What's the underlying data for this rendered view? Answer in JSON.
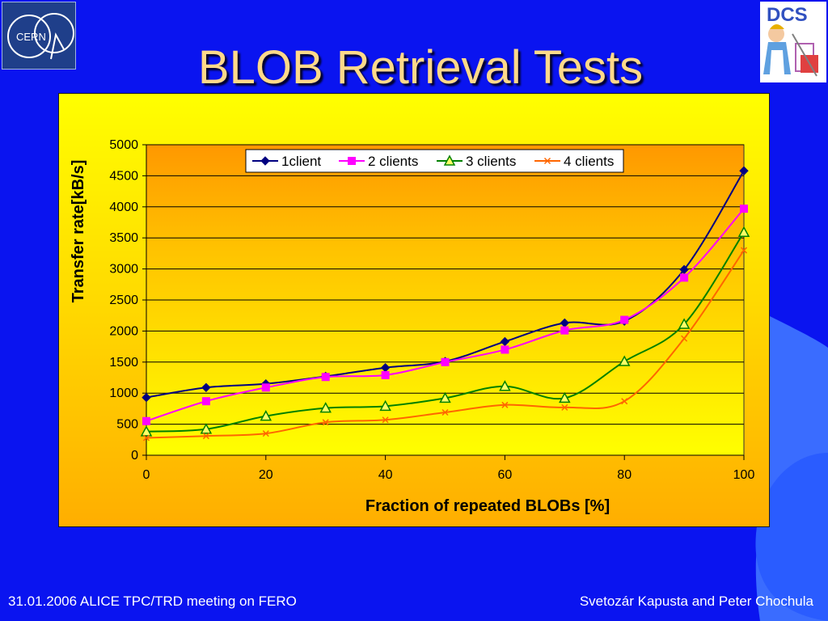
{
  "slide": {
    "title": "BLOB Retrieval Tests",
    "footer_left": "31.01.2006 ALICE TPC/TRD meeting on FERO",
    "footer_right": "Svetozár Kapusta and Peter Chochula",
    "logo_left_text": "CERN",
    "logo_right_text": "DCS",
    "background_color": "#0a14f0",
    "title_color": "#ffd98a"
  },
  "chart_data": {
    "type": "line",
    "title": "",
    "xlabel": "Fraction of repeated BLOBs [%]",
    "ylabel": "Transfer rate[kB/s]",
    "x": [
      0,
      10,
      20,
      30,
      40,
      50,
      60,
      70,
      80,
      90,
      100
    ],
    "xlim": [
      0,
      100
    ],
    "ylim": [
      0,
      5000
    ],
    "xticks": [
      0,
      20,
      40,
      60,
      80,
      100
    ],
    "yticks": [
      0,
      500,
      1000,
      1500,
      2000,
      2500,
      3000,
      3500,
      4000,
      4500,
      5000
    ],
    "grid": true,
    "legend_position": "top",
    "series": [
      {
        "name": "1client",
        "color": "#000080",
        "marker": "diamond",
        "values": [
          930,
          1090,
          1150,
          1270,
          1410,
          1510,
          1830,
          2130,
          2160,
          2990,
          4580
        ]
      },
      {
        "name": "2 clients",
        "color": "#ff00ff",
        "marker": "square",
        "values": [
          550,
          870,
          1090,
          1260,
          1290,
          1500,
          1700,
          2010,
          2180,
          2860,
          3970
        ]
      },
      {
        "name": "3 clients",
        "color": "#008000",
        "marker": "triangle",
        "values": [
          380,
          420,
          630,
          760,
          790,
          920,
          1110,
          920,
          1510,
          2110,
          3590
        ]
      },
      {
        "name": "4 clients",
        "color": "#ff6600",
        "marker": "x",
        "values": [
          280,
          310,
          350,
          530,
          570,
          690,
          810,
          770,
          870,
          1880,
          3300
        ]
      }
    ]
  }
}
